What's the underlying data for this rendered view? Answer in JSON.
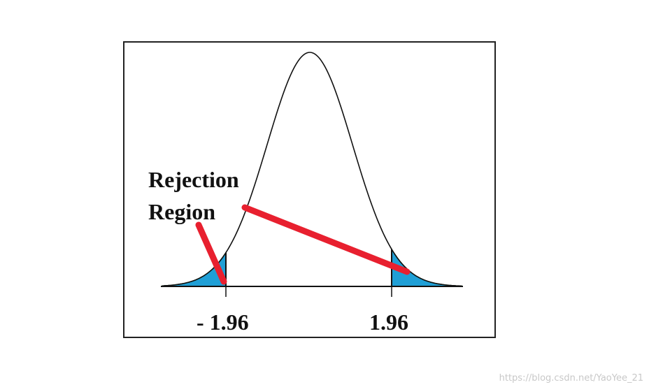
{
  "annotation": [
    "Rejection",
    "Region"
  ],
  "axis_labels": [
    "- 1.96",
    "1.96"
  ],
  "watermark": "https://blog.csdn.net/YaoYee_21"
}
